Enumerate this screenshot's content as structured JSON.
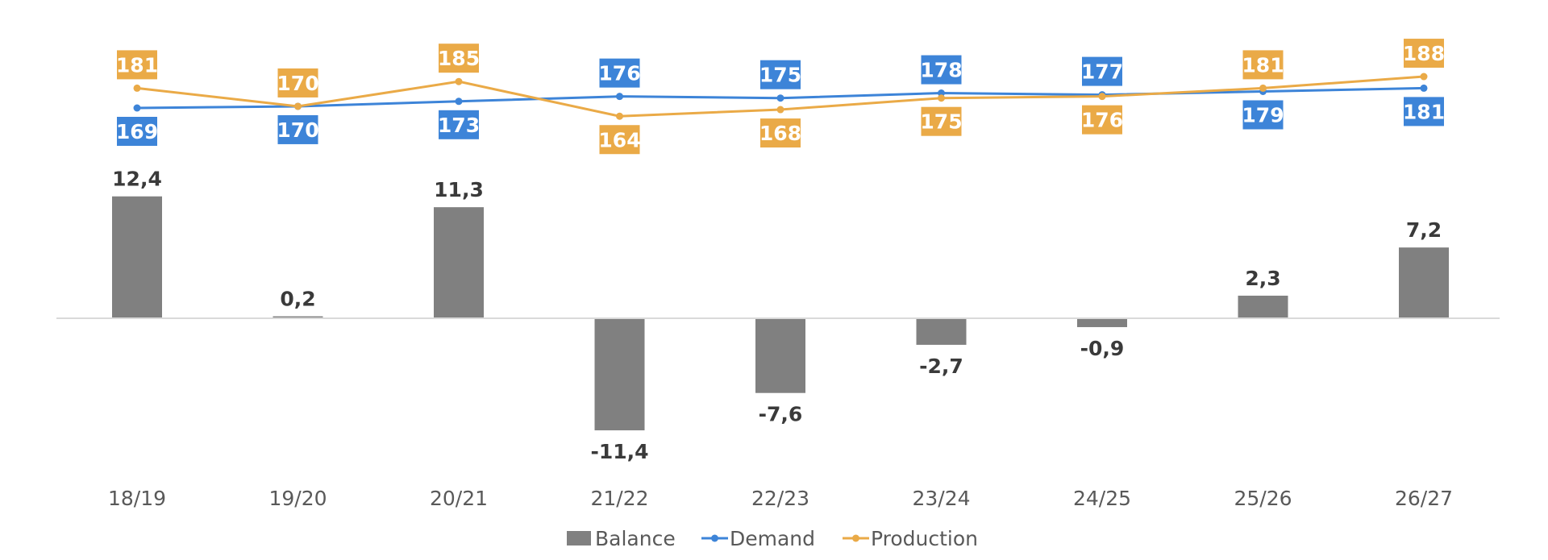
{
  "chart_data": {
    "type": "bar+line",
    "categories": [
      "18/19",
      "19/20",
      "20/21",
      "21/22",
      "22/23",
      "23/24",
      "24/25",
      "25/26",
      "26/27"
    ],
    "series": [
      {
        "name": "Balance",
        "kind": "bar",
        "values": [
          12.4,
          0.2,
          11.3,
          -11.4,
          -7.6,
          -2.7,
          -0.9,
          2.3,
          7.2
        ],
        "labels": [
          "12,4",
          "0,2",
          "11,3",
          "-11,4",
          "-7,6",
          "-2,7",
          "-0,9",
          "2,3",
          "7,2"
        ]
      },
      {
        "name": "Demand",
        "kind": "line",
        "values": [
          169,
          170,
          173,
          176,
          175,
          178,
          177,
          179,
          181
        ],
        "labels": [
          "169",
          "170",
          "173",
          "176",
          "175",
          "178",
          "177",
          "179",
          "181"
        ]
      },
      {
        "name": "Production",
        "kind": "line",
        "values": [
          181,
          170,
          185,
          164,
          168,
          175,
          176,
          181,
          188
        ],
        "labels": [
          "181",
          "170",
          "185",
          "164",
          "168",
          "175",
          "176",
          "181",
          "188"
        ]
      }
    ],
    "balance_axis": {
      "ylim": [
        -15,
        15
      ]
    },
    "line_axis": {
      "ylim": [
        160,
        190
      ]
    },
    "legend": [
      "Balance",
      "Demand",
      "Production"
    ],
    "legend_position": "bottom",
    "grid": false,
    "title": "",
    "xlabel": "",
    "ylabel": ""
  },
  "colors": {
    "balance": "#808080",
    "demand": "#3d84d8",
    "production": "#eaaa47",
    "text": "#3a3a3a",
    "axis": "#d9d9d9"
  }
}
